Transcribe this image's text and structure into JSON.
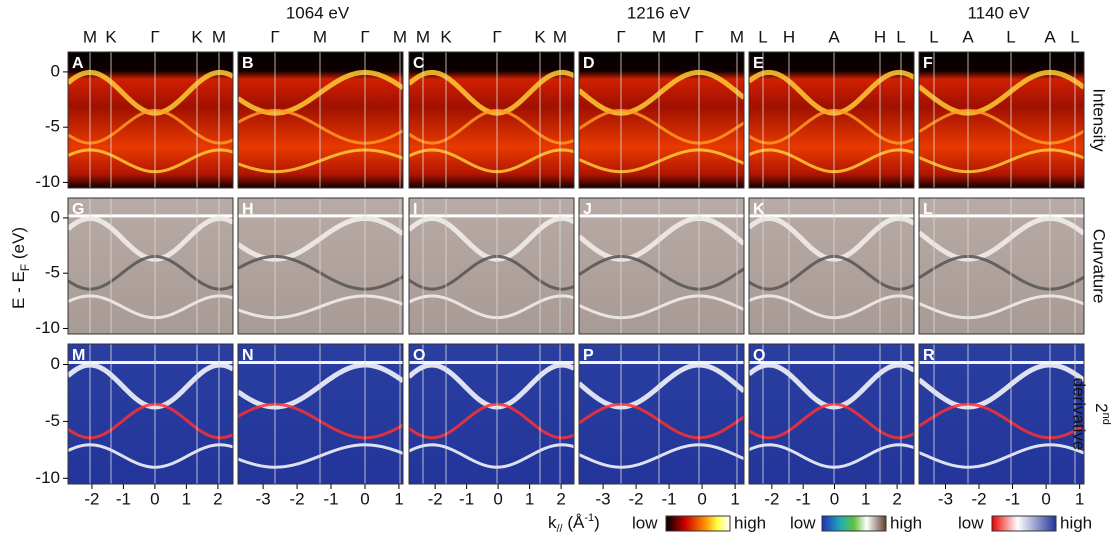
{
  "energies": [
    "1064 eV",
    "1216 eV",
    "1140 eV"
  ],
  "columns": [
    {
      "labels": [
        "M",
        "K",
        "Γ",
        "K",
        "M"
      ],
      "xticks": [
        -2,
        -1,
        0,
        1,
        2
      ],
      "xlim": [
        -2.76,
        2.48
      ]
    },
    {
      "labels": [
        "Γ",
        "M",
        "Γ",
        "M"
      ],
      "xticks": [
        -3,
        -2,
        -1,
        0,
        1
      ],
      "xlim": [
        -3.74,
        1.12
      ]
    },
    {
      "labels": [
        "M",
        "K",
        "Γ",
        "K",
        "M"
      ],
      "xticks": [
        -2,
        -1,
        0,
        1,
        2
      ],
      "xlim": [
        -2.83,
        2.41
      ]
    },
    {
      "labels": [
        "Γ",
        "M",
        "Γ",
        "M"
      ],
      "xticks": [
        -3,
        -2,
        -1,
        0,
        1
      ],
      "xlim": [
        -3.73,
        1.27
      ]
    },
    {
      "labels": [
        "L",
        "H",
        "A",
        "H",
        "L"
      ],
      "xticks": [
        -2,
        -1,
        0,
        1,
        2
      ],
      "xlim": [
        -2.73,
        2.54
      ]
    },
    {
      "labels": [
        "L",
        "A",
        "L",
        "A",
        "L"
      ],
      "xticks": [
        -3,
        -2,
        -1,
        0,
        1
      ],
      "xlim": [
        -3.79,
        1.13
      ]
    }
  ],
  "rows": [
    {
      "label": {
        "main": "Intensity"
      },
      "panels": [
        "A",
        "B",
        "C",
        "D",
        "E",
        "F"
      ]
    },
    {
      "label": {
        "main": "Curvature"
      },
      "panels": [
        "G",
        "H",
        "I",
        "J",
        "K",
        "L"
      ]
    },
    {
      "label": {
        "main": "2",
        "sup": "nd",
        "line2": "derivative"
      },
      "panels": [
        "M",
        "N",
        "O",
        "P",
        "Q",
        "R"
      ]
    }
  ],
  "ylim": [
    -10.5,
    1.8
  ],
  "yticks": [
    0,
    -5,
    -10
  ],
  "yLabel": {
    "main": "E - E",
    "sub": "F",
    "unit": " (eV)"
  },
  "xLabel": {
    "main": "k",
    "sub": "//",
    "unit": " (Å",
    "sup": "-1",
    "end": ")"
  },
  "colorbars": [
    {
      "low": "low",
      "high": "high"
    },
    {
      "low": "low",
      "high": "high"
    },
    {
      "low": "low",
      "high": "high"
    }
  ]
}
